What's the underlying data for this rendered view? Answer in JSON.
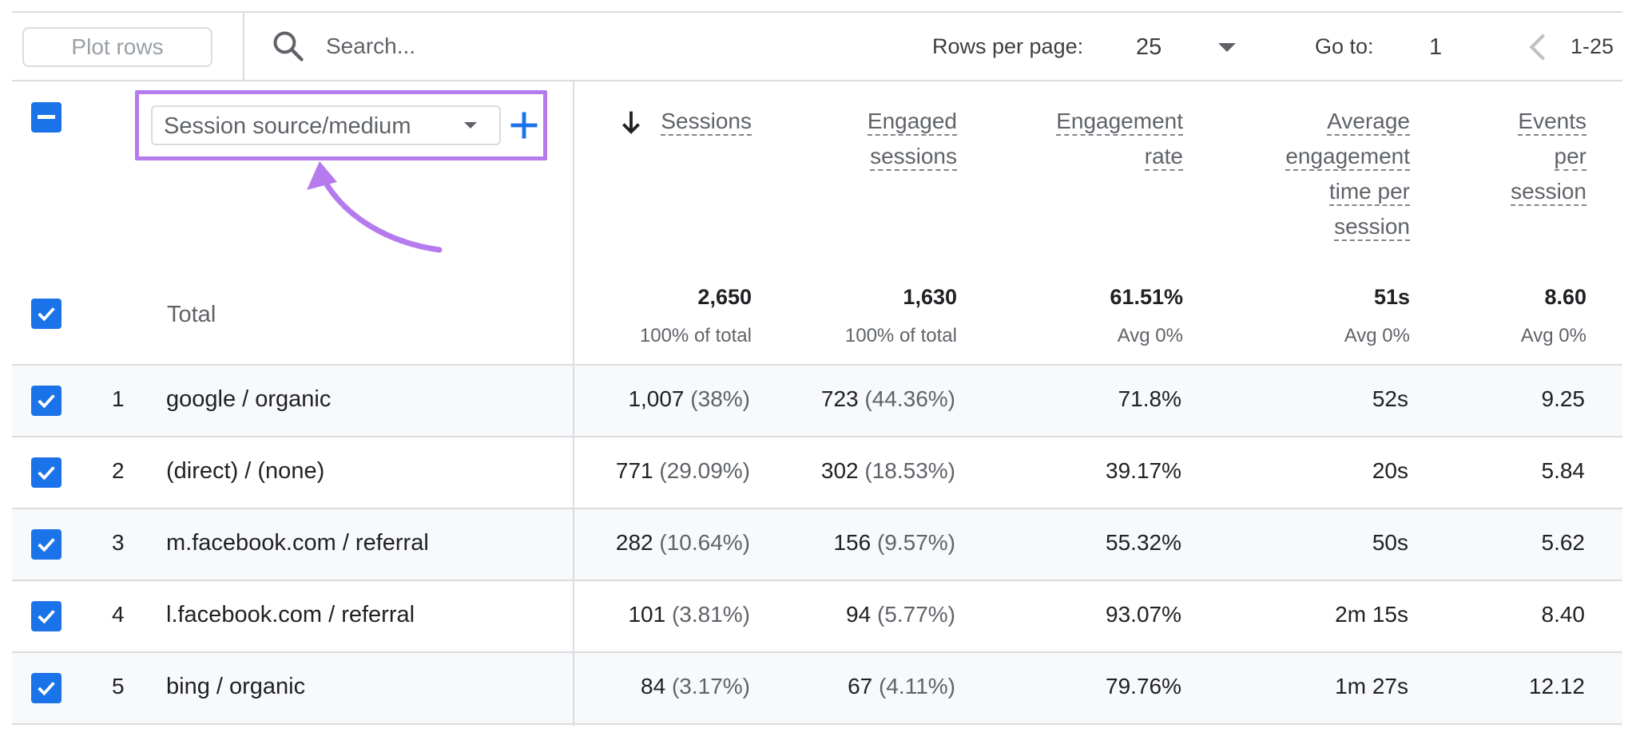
{
  "toolbar": {
    "plot_rows_label": "Plot rows",
    "search_placeholder": "Search...",
    "rows_per_page_label": "Rows per page:",
    "rows_per_page_value": "25",
    "goto_label": "Go to:",
    "goto_value": "1",
    "range_label": "1-25"
  },
  "dimension": {
    "label": "Session source/medium"
  },
  "columns": {
    "sessions": [
      "Sessions"
    ],
    "engaged_sessions": [
      "Engaged",
      "sessions"
    ],
    "engagement_rate": [
      "Engagement",
      "rate"
    ],
    "avg_engagement_time": [
      "Average",
      "engagement",
      "time per",
      "session"
    ],
    "events_per_session": [
      "Events",
      "per",
      "session"
    ]
  },
  "totals": {
    "label": "Total",
    "sessions": "2,650",
    "sessions_sub": "100% of total",
    "engaged_sessions": "1,630",
    "engaged_sessions_sub": "100% of total",
    "engagement_rate": "61.51%",
    "engagement_rate_sub": "Avg 0%",
    "avg_engagement_time": "51s",
    "avg_engagement_time_sub": "Avg 0%",
    "events_per_session": "8.60",
    "events_per_session_sub": "Avg 0%"
  },
  "rows": [
    {
      "num": "1",
      "dim": "google / organic",
      "sessions": "1,007",
      "sessions_pct": "(38%)",
      "engaged": "723",
      "engaged_pct": "(44.36%)",
      "rate": "71.8%",
      "time": "52s",
      "events": "9.25"
    },
    {
      "num": "2",
      "dim": "(direct) / (none)",
      "sessions": "771",
      "sessions_pct": "(29.09%)",
      "engaged": "302",
      "engaged_pct": "(18.53%)",
      "rate": "39.17%",
      "time": "20s",
      "events": "5.84"
    },
    {
      "num": "3",
      "dim": "m.facebook.com / referral",
      "sessions": "282",
      "sessions_pct": "(10.64%)",
      "engaged": "156",
      "engaged_pct": "(9.57%)",
      "rate": "55.32%",
      "time": "50s",
      "events": "5.62"
    },
    {
      "num": "4",
      "dim": "l.facebook.com / referral",
      "sessions": "101",
      "sessions_pct": "(3.81%)",
      "engaged": "94",
      "engaged_pct": "(5.77%)",
      "rate": "93.07%",
      "time": "2m 15s",
      "events": "8.40"
    },
    {
      "num": "5",
      "dim": "bing / organic",
      "sessions": "84",
      "sessions_pct": "(3.17%)",
      "engaged": "67",
      "engaged_pct": "(4.11%)",
      "rate": "79.76%",
      "time": "1m 27s",
      "events": "12.12"
    }
  ],
  "colors": {
    "checkbox": "#1a73e8",
    "highlight": "#b57bee",
    "row_shade": "#f8f9fa",
    "divider": "#dadce0"
  },
  "icons": [
    "search-icon",
    "chevron-down-icon",
    "chevron-left-icon",
    "plus-icon",
    "arrow-down-icon",
    "check-icon",
    "annotation-arrow-icon"
  ]
}
